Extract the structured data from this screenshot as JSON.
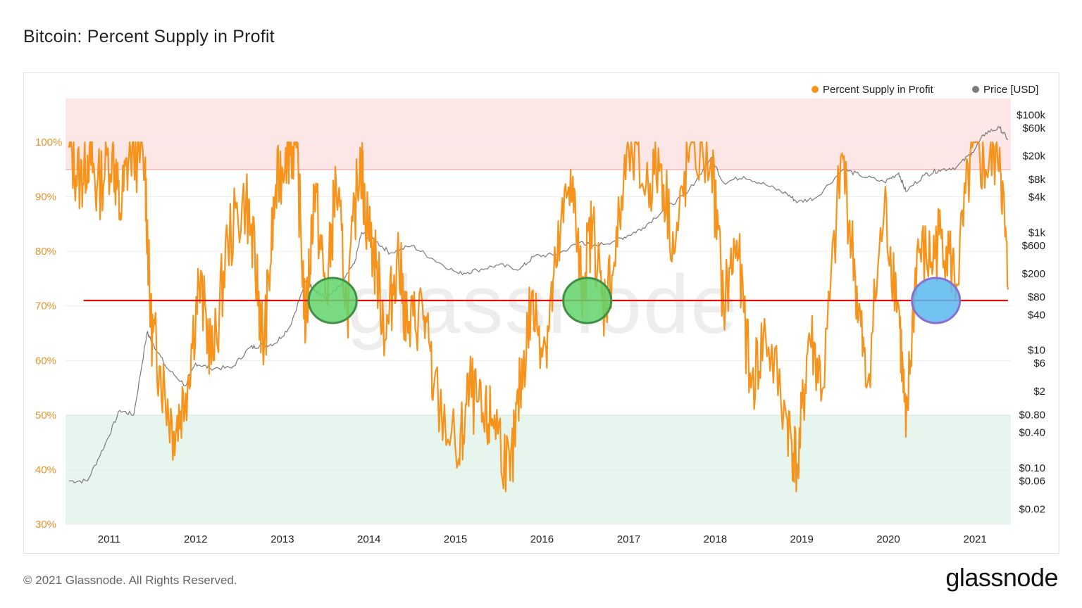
{
  "title": "Bitcoin: Percent Supply in Profit",
  "footer": "© 2021 Glassnode. All Rights Reserved.",
  "brand": "glassnode",
  "watermark": "glassnode",
  "colors": {
    "profit": "#f7931a",
    "price": "#7a7a7a",
    "upper_band": "#fde6e6",
    "lower_band": "#e6f6ee",
    "support_line": "#e01010",
    "circle_green": "#62d36c",
    "circle_blue": "#5ab8f0"
  },
  "chart_data": {
    "type": "line",
    "title": "Bitcoin: Percent Supply in Profit",
    "legend": [
      {
        "name": "Percent Supply in Profit",
        "color": "#f7931a"
      },
      {
        "name": "Price [USD]",
        "color": "#7a7a7a"
      }
    ],
    "legend_position": "top-right",
    "x_ticks": [
      "2011",
      "2012",
      "2013",
      "2014",
      "2015",
      "2016",
      "2017",
      "2018",
      "2019",
      "2020",
      "2021"
    ],
    "xlim": [
      "2010-07-01",
      "2021-06-01"
    ],
    "y_left": {
      "ticks": [
        "30%",
        "40%",
        "50%",
        "60%",
        "70%",
        "80%",
        "90%",
        "100%"
      ],
      "ylim": [
        30,
        108
      ]
    },
    "y_right": {
      "scale": "log",
      "ticks": [
        "$0.02",
        "$0.06",
        "$0.10",
        "$0.40",
        "$0.80",
        "$2",
        "$6",
        "$10",
        "$40",
        "$80",
        "$200",
        "$600",
        "$1k",
        "$4k",
        "$8k",
        "$20k",
        "$60k",
        "$100k"
      ]
    },
    "bands": [
      {
        "from": 95,
        "to": 108,
        "color": "#fde6e6"
      },
      {
        "from": 30,
        "to": 50,
        "color": "#e6f6ee"
      }
    ],
    "annotations": {
      "horizontal_line": {
        "y": 71,
        "from": "2010-09-15",
        "to": "2021-05-20",
        "color": "#e01010"
      },
      "circles": [
        {
          "x": "2013-08-01",
          "y": 71,
          "color": "#62d36c"
        },
        {
          "x": "2016-07-10",
          "y": 71,
          "color": "#62d36c"
        },
        {
          "x": "2020-07-20",
          "y": 71,
          "color": "#5ab8f0"
        }
      ]
    },
    "series": [
      {
        "name": "Percent Supply in Profit",
        "x": [
          "2010-07-15",
          "2010-09-01",
          "2010-10-10",
          "2010-11-10",
          "2011-01-15",
          "2011-02-15",
          "2011-04-01",
          "2011-06-01",
          "2011-06-25",
          "2011-08-01",
          "2011-10-01",
          "2011-11-20",
          "2012-01-15",
          "2012-03-15",
          "2012-05-15",
          "2012-08-01",
          "2012-09-15",
          "2012-10-15",
          "2012-12-01",
          "2013-01-15",
          "2013-03-01",
          "2013-04-10",
          "2013-05-15",
          "2013-07-05",
          "2013-08-15",
          "2013-10-01",
          "2013-11-25",
          "2013-12-15",
          "2014-02-01",
          "2014-03-15",
          "2014-05-01",
          "2014-06-15",
          "2014-08-15",
          "2014-10-01",
          "2015-01-15",
          "2015-03-01",
          "2015-05-01",
          "2015-06-15",
          "2015-08-20",
          "2015-10-01",
          "2015-11-15",
          "2016-01-15",
          "2016-03-01",
          "2016-05-01",
          "2016-06-15",
          "2016-08-01",
          "2016-09-15",
          "2016-11-01",
          "2017-01-01",
          "2017-03-15",
          "2017-05-15",
          "2017-07-15",
          "2017-09-15",
          "2017-12-15",
          "2018-02-05",
          "2018-04-01",
          "2018-06-01",
          "2018-08-01",
          "2018-11-01",
          "2018-12-15",
          "2019-02-01",
          "2019-04-01",
          "2019-06-20",
          "2019-08-15",
          "2019-10-01",
          "2019-12-15",
          "2020-02-14",
          "2020-03-15",
          "2020-05-01",
          "2020-07-01",
          "2020-08-15",
          "2020-10-15",
          "2020-12-20",
          "2021-02-15",
          "2021-04-15",
          "2021-05-20"
        ],
        "values": [
          99,
          93,
          99,
          91,
          99,
          87,
          99,
          96,
          67,
          59,
          47,
          54,
          74,
          60,
          82,
          90,
          75,
          62,
          90,
          99,
          99,
          66,
          92,
          71,
          93,
          69,
          99,
          88,
          77,
          64,
          80,
          65,
          70,
          55,
          42,
          55,
          48,
          50,
          38,
          55,
          70,
          63,
          77,
          95,
          73,
          85,
          70,
          78,
          99,
          92,
          96,
          80,
          99,
          97,
          70,
          82,
          55,
          65,
          49,
          40,
          65,
          55,
          98,
          75,
          55,
          88,
          70,
          46,
          80,
          78,
          84,
          74,
          99,
          95,
          99,
          73
        ]
      },
      {
        "name": "Price [USD]",
        "x": [
          "2010-07-15",
          "2010-10-01",
          "2010-12-15",
          "2011-02-15",
          "2011-04-15",
          "2011-06-10",
          "2011-07-01",
          "2011-09-01",
          "2011-11-20",
          "2012-01-01",
          "2012-03-01",
          "2012-06-01",
          "2012-08-15",
          "2012-10-01",
          "2012-12-01",
          "2013-02-01",
          "2013-04-10",
          "2013-05-15",
          "2013-07-05",
          "2013-09-01",
          "2013-11-01",
          "2013-12-01",
          "2014-02-01",
          "2014-04-01",
          "2014-07-01",
          "2014-10-01",
          "2015-01-15",
          "2015-04-01",
          "2015-07-01",
          "2015-10-01",
          "2015-12-01",
          "2016-03-01",
          "2016-06-15",
          "2016-08-01",
          "2016-11-01",
          "2017-01-01",
          "2017-03-01",
          "2017-06-01",
          "2017-09-01",
          "2017-12-15",
          "2018-02-05",
          "2018-05-01",
          "2018-08-01",
          "2018-11-01",
          "2018-12-15",
          "2019-03-01",
          "2019-06-25",
          "2019-09-01",
          "2019-12-15",
          "2020-02-14",
          "2020-03-15",
          "2020-06-01",
          "2020-08-01",
          "2020-10-15",
          "2020-12-20",
          "2021-02-15",
          "2021-04-15",
          "2021-05-20"
        ],
        "values": [
          0.06,
          0.06,
          0.25,
          0.95,
          0.8,
          20,
          14,
          5,
          2.5,
          6,
          5,
          5,
          11,
          12,
          13,
          25,
          150,
          110,
          75,
          120,
          300,
          1000,
          700,
          450,
          600,
          350,
          200,
          230,
          280,
          240,
          400,
          420,
          700,
          580,
          720,
          900,
          1200,
          2500,
          4500,
          19000,
          7000,
          9000,
          6500,
          4500,
          3300,
          3900,
          12000,
          9500,
          7200,
          10300,
          5000,
          9500,
          11500,
          13000,
          23000,
          50000,
          60000,
          38000
        ]
      }
    ]
  }
}
